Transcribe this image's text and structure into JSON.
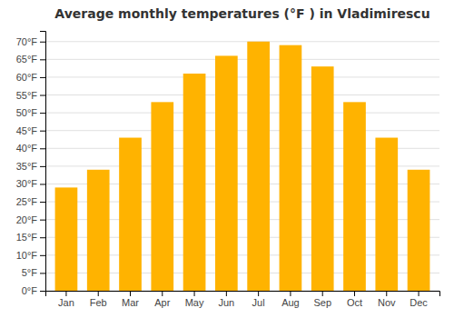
{
  "chart_data": {
    "type": "bar",
    "title": "Average monthly temperatures (°F ) in Vladimirescu",
    "categories": [
      "Jan",
      "Feb",
      "Mar",
      "Apr",
      "May",
      "Jun",
      "Jul",
      "Aug",
      "Sep",
      "Oct",
      "Nov",
      "Dec"
    ],
    "values": [
      29,
      34,
      43,
      53,
      61,
      66,
      70,
      69,
      63,
      53,
      43,
      34
    ],
    "color": "#FFB300",
    "ylim": [
      0,
      73
    ],
    "yticks": [
      {
        "value": 0,
        "label": "0°F"
      },
      {
        "value": 5,
        "label": "5°F"
      },
      {
        "value": 10,
        "label": "10°F"
      },
      {
        "value": 15,
        "label": "15°F"
      },
      {
        "value": 20,
        "label": "20°F"
      },
      {
        "value": 25,
        "label": "25°F"
      },
      {
        "value": 30,
        "label": "30°F"
      },
      {
        "value": 35,
        "label": "35°F"
      },
      {
        "value": 40,
        "label": "40°F"
      },
      {
        "value": 45,
        "label": "45°F"
      },
      {
        "value": 50,
        "label": "50°F"
      },
      {
        "value": 55,
        "label": "55°F"
      },
      {
        "value": 60,
        "label": "60°F"
      },
      {
        "value": 65,
        "label": "65°F"
      },
      {
        "value": 70,
        "label": "70°F"
      }
    ],
    "grid": true
  }
}
